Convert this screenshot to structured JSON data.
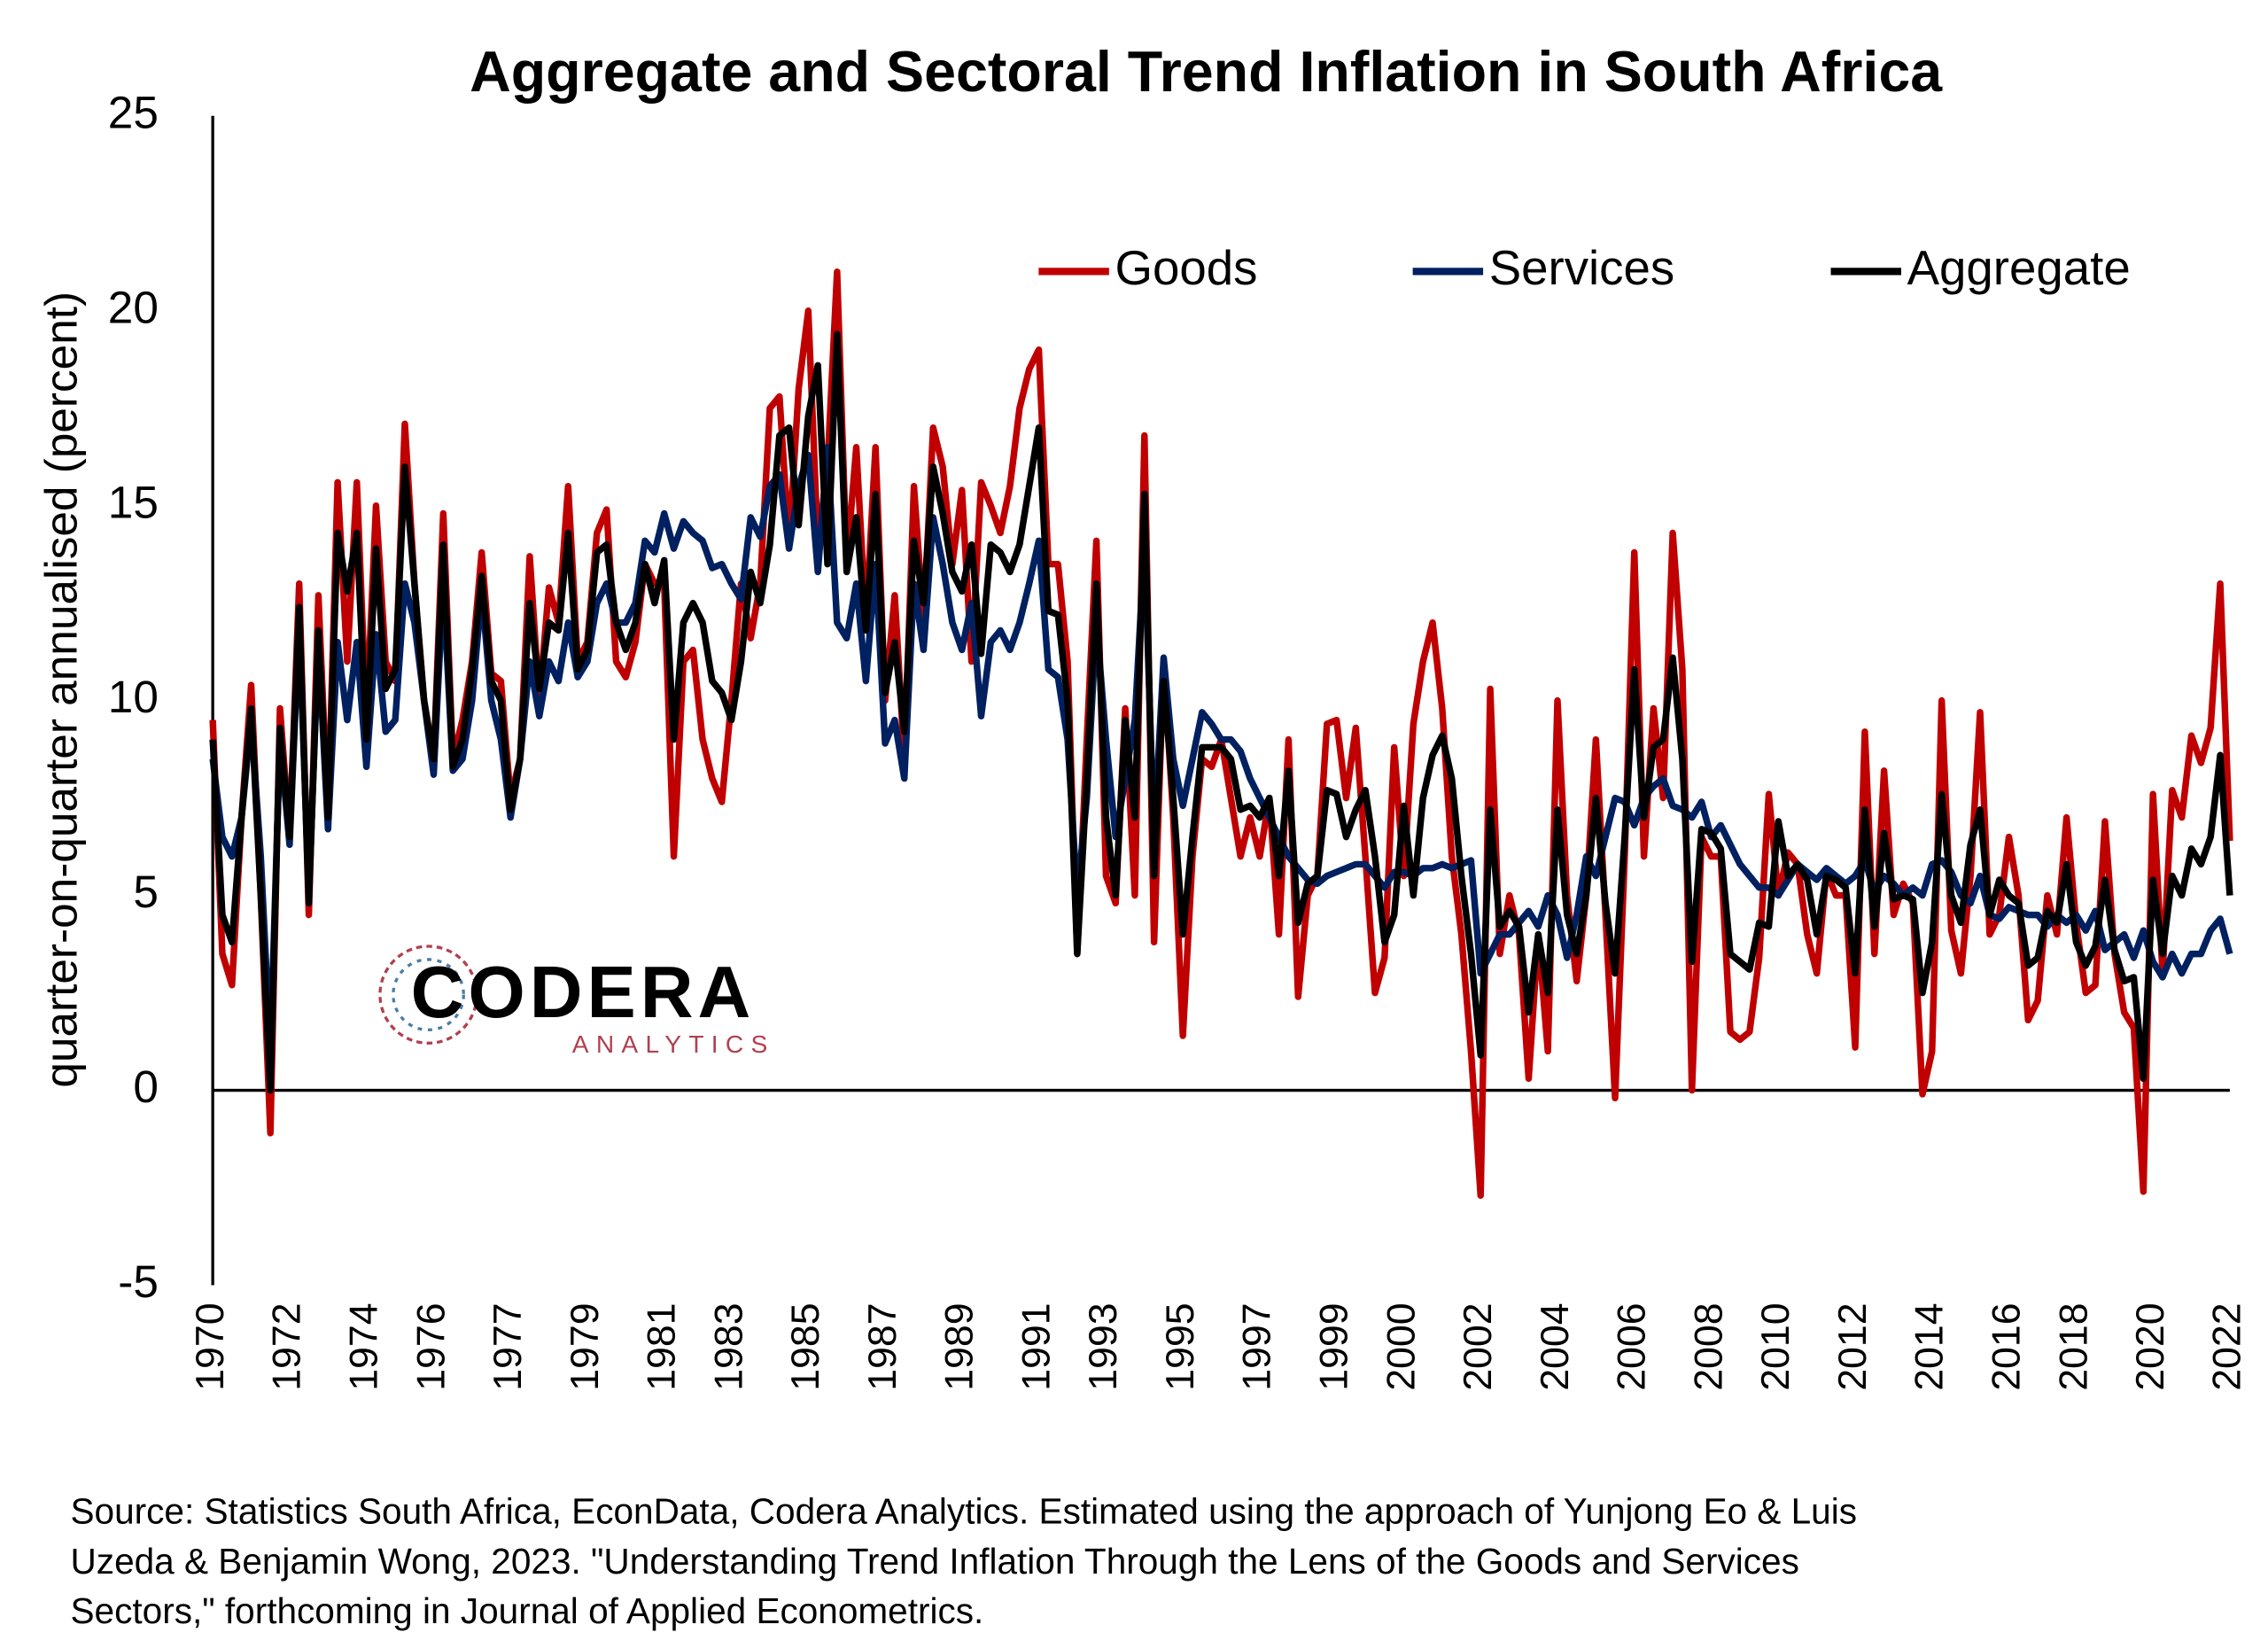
{
  "chart_data": {
    "type": "line",
    "title": "Aggregate and Sectoral Trend Inflation in South Africa",
    "y_label": "quarter-on-quarter annualised (percent)",
    "source": [
      "Source: Statistics South Africa, EconData, Codera Analytics. Estimated using the approach of Yunjong Eo & Luis",
      "Uzeda & Benjamin Wong, 2023. \"Understanding Trend Inflation Through the Lens of the Goods and Services",
      "Sectors,\" forthcoming in Journal of Applied Econometrics."
    ],
    "logo": {
      "name": "CODERA",
      "tagline": "ANALYTICS"
    },
    "ylim": [
      -5,
      25
    ],
    "yticks": [
      -5,
      0,
      5,
      10,
      15,
      20,
      25
    ],
    "grid": false,
    "legend": "top",
    "categories": [
      "1970",
      null,
      null,
      null,
      null,
      null,
      null,
      null,
      "1972",
      null,
      null,
      null,
      null,
      null,
      null,
      null,
      "1974",
      null,
      null,
      null,
      null,
      null,
      null,
      "1976",
      null,
      null,
      null,
      null,
      null,
      null,
      null,
      "1977",
      null,
      null,
      null,
      null,
      null,
      null,
      null,
      "1979",
      null,
      null,
      null,
      null,
      null,
      null,
      null,
      "1981",
      null,
      null,
      null,
      null,
      null,
      null,
      "1983",
      null,
      null,
      null,
      null,
      null,
      null,
      null,
      "1985",
      null,
      null,
      null,
      null,
      null,
      null,
      null,
      "1987",
      null,
      null,
      null,
      null,
      null,
      null,
      null,
      "1989",
      null,
      null,
      null,
      null,
      null,
      null,
      null,
      "1991",
      null,
      null,
      null,
      null,
      null,
      null,
      "1993",
      null,
      null,
      null,
      null,
      null,
      null,
      null,
      "1995",
      null,
      null,
      null,
      null,
      null,
      null,
      null,
      "1997",
      null,
      null,
      null,
      null,
      null,
      null,
      null,
      "1999",
      null,
      null,
      null,
      null,
      null,
      null,
      "2000",
      null,
      null,
      null,
      null,
      null,
      null,
      null,
      "2002",
      null,
      null,
      null,
      null,
      null,
      null,
      null,
      "2004",
      null,
      null,
      null,
      null,
      null,
      null,
      null,
      "2006",
      null,
      null,
      null,
      null,
      null,
      null,
      null,
      "2008",
      null,
      null,
      null,
      null,
      null,
      null,
      "2010",
      null,
      null,
      null,
      null,
      null,
      null,
      null,
      "2012",
      null,
      null,
      null,
      null,
      null,
      null,
      null,
      "2014",
      null,
      null,
      null,
      null,
      null,
      null,
      null,
      "2016",
      null,
      null,
      null,
      null,
      null,
      null,
      "2018",
      null,
      null,
      null,
      null,
      null,
      null,
      null,
      "2020",
      null,
      null,
      null,
      null,
      null,
      null,
      null,
      "2022"
    ],
    "series": [
      {
        "name": "Goods",
        "color": "#c00000",
        "values": [
          9.5,
          3.5,
          2.7,
          7,
          10.4,
          5,
          -1.1,
          9.8,
          6.5,
          13,
          4.5,
          12.7,
          7,
          15.6,
          11,
          15.6,
          9.5,
          15,
          11,
          10.5,
          17.1,
          13,
          10,
          8.5,
          14.8,
          8.5,
          9.5,
          11,
          13.8,
          10.7,
          10.5,
          7.5,
          8.5,
          13.7,
          10,
          12.9,
          12,
          15.5,
          11,
          11.5,
          14.3,
          14.9,
          11,
          10.6,
          11.5,
          13.5,
          13,
          13,
          6,
          11,
          11.3,
          9,
          8,
          7.4,
          10,
          13,
          11.6,
          13,
          17.5,
          17.8,
          14,
          18,
          20,
          14,
          16,
          21,
          13.5,
          16.5,
          12,
          16.5,
          10,
          12.7,
          8.5,
          15.5,
          12,
          17,
          16,
          13.5,
          15.4,
          11,
          15.6,
          15,
          14.3,
          15.5,
          17.5,
          18.5,
          19,
          13.5,
          13.5,
          11,
          3.5,
          9,
          14.1,
          5.5,
          4.8,
          9.8,
          5,
          16.8,
          3.8,
          11,
          7,
          1.4,
          6,
          8.5,
          8.3,
          9,
          7.5,
          6,
          7,
          6,
          7.5,
          4,
          9,
          2.4,
          5,
          5.5,
          9.4,
          9.5,
          7.5,
          9.3,
          6,
          2.5,
          3.4,
          8.8,
          5.5,
          9.4,
          11,
          12,
          9.8,
          6,
          4,
          1,
          -2.7,
          10.3,
          3.5,
          5,
          4,
          0.3,
          4,
          1,
          10,
          5,
          2.8,
          5,
          9,
          4.5,
          -0.2,
          6,
          13.8,
          6,
          9.8,
          7.5,
          14.3,
          10.8,
          0,
          6.5,
          6,
          6,
          1.5,
          1.3,
          1.5,
          3.4,
          7.6,
          5,
          6.1,
          5.8,
          4,
          3,
          5.6,
          5,
          5,
          1.1,
          9.2,
          3.5,
          8.2,
          4.5,
          5.3,
          4.8,
          -0.1,
          1,
          10,
          4.1,
          3,
          5.5,
          9.7,
          4,
          4.5,
          6.5,
          5,
          1.8,
          2.3,
          5,
          4,
          7,
          4.3,
          2.5,
          2.7,
          6.9,
          3.5,
          2,
          1.6,
          -2.6,
          7.6,
          3,
          7.7,
          7,
          9.1,
          8.4,
          9.3,
          13,
          6.4
        ]
      },
      {
        "name": "Services",
        "color": "#002060",
        "values": [
          8.5,
          6.5,
          6,
          7,
          9.5,
          6,
          1,
          9,
          6.3,
          12,
          5,
          11.5,
          6.7,
          11.5,
          9.5,
          11.5,
          8.3,
          11.7,
          9.2,
          9.5,
          13,
          12,
          10,
          8.1,
          13,
          8.2,
          8.5,
          10,
          12.8,
          10,
          9,
          7,
          8.5,
          11,
          9.6,
          11,
          10.5,
          12,
          10.6,
          11,
          12.5,
          13,
          12,
          12,
          12.5,
          14.1,
          13.8,
          14.8,
          13.9,
          14.6,
          14.3,
          14.1,
          13.4,
          13.5,
          13,
          12.6,
          14.7,
          14.2,
          15.5,
          15.8,
          13.9,
          15.5,
          16.3,
          13.3,
          16.5,
          12,
          11.6,
          13,
          10.5,
          13.5,
          8.9,
          9.5,
          8,
          13,
          11.3,
          14.7,
          13.5,
          12,
          11.3,
          12.5,
          9.6,
          11.5,
          11.8,
          11.3,
          12,
          13,
          14.1,
          10.8,
          10.6,
          9,
          5,
          7.5,
          12,
          9,
          6.5,
          8,
          9.5,
          14,
          6.5,
          11.1,
          8.5,
          7.3,
          8.5,
          9.7,
          9.4,
          9,
          9,
          8.7,
          8,
          7.5,
          7,
          6.5,
          6,
          5.7,
          5.4,
          5.3,
          5.5,
          5.6,
          5.7,
          5.8,
          5.8,
          5.5,
          5.2,
          5.6,
          5.6,
          5.5,
          5.7,
          5.7,
          5.8,
          5.7,
          5.8,
          5.9,
          3,
          3.5,
          4,
          4,
          4.3,
          4.6,
          4.2,
          5,
          4.5,
          3.4,
          4.5,
          6,
          5.5,
          6.5,
          7.5,
          7.4,
          6.8,
          7.5,
          7.8,
          8,
          7.3,
          7.2,
          7,
          7.4,
          6.5,
          6.8,
          6.3,
          5.8,
          5.5,
          5.2,
          5.2,
          5,
          5.4,
          5.8,
          5.6,
          5.4,
          5.7,
          5.5,
          5.3,
          5.5,
          5.9,
          5.1,
          5.5,
          5.3,
          5,
          5.2,
          5,
          5.8,
          5.9,
          5.6,
          5,
          4.8,
          5.5,
          4.5,
          4.4,
          4.7,
          4.6,
          4.5,
          4.5,
          4.2,
          4.5,
          4.3,
          4.5,
          4.1,
          4.6,
          3.6,
          3.8,
          4,
          3.4,
          4.1,
          3.3,
          2.9,
          3.5,
          3,
          3.5,
          3.5,
          4.1,
          4.4,
          3.5
        ]
      },
      {
        "name": "Aggregate",
        "color": "#000000",
        "values": [
          9,
          4.5,
          3.8,
          7,
          9.8,
          5,
          0,
          9.3,
          6.5,
          12.4,
          4.8,
          11.8,
          7,
          14.3,
          12.8,
          14.3,
          9,
          13.9,
          10.3,
          10.8,
          16,
          13,
          10,
          8.5,
          14,
          8.3,
          9,
          10.8,
          13.2,
          10.5,
          10,
          7.2,
          8.5,
          12.5,
          10.3,
          12,
          11.8,
          14.3,
          10.8,
          11.3,
          13.8,
          14,
          12,
          11.3,
          12,
          13.5,
          12.5,
          13.6,
          9,
          12,
          12.5,
          12,
          10.5,
          10.2,
          9.5,
          11,
          13.3,
          12.5,
          14,
          16.8,
          17,
          14.5,
          17.3,
          18.6,
          13.5,
          19.4,
          13.3,
          14.7,
          11.8,
          15.3,
          10.2,
          11.5,
          9.2,
          14.1,
          12.5,
          16,
          14.8,
          13.3,
          12.8,
          14,
          11.2,
          14,
          13.8,
          13.3,
          14,
          15.5,
          17,
          12.3,
          12.2,
          10,
          3.5,
          8,
          13,
          7,
          5,
          9.5,
          7,
          15.3,
          5.5,
          10.5,
          7.5,
          4,
          6.5,
          8.8,
          8.8,
          8.8,
          8.5,
          7.2,
          7.3,
          7,
          7.5,
          5.5,
          8.2,
          4.3,
          5.3,
          5.5,
          7.7,
          7.6,
          6.5,
          7.2,
          7.7,
          6,
          3.8,
          4.5,
          7.3,
          5,
          7.5,
          8.6,
          9.1,
          8,
          5.5,
          3.5,
          0.9,
          7.2,
          4.2,
          4.6,
          4.2,
          2,
          4,
          2.5,
          7.2,
          4.5,
          3.5,
          5,
          7.5,
          4.8,
          3,
          6.5,
          10.8,
          7,
          8.8,
          9,
          11.1,
          8.5,
          3.3,
          6.7,
          6.6,
          6.2,
          3.5,
          3.3,
          3.1,
          4.3,
          4.2,
          6.9,
          5.5,
          5.8,
          5.4,
          4,
          5.5,
          5.4,
          5.2,
          3,
          7.2,
          4.2,
          6.6,
          4.9,
          5,
          4.9,
          2.5,
          3.8,
          7.6,
          5,
          4.3,
          6.3,
          7.2,
          4.5,
          5.4,
          5,
          4.8,
          3.2,
          3.4,
          4.6,
          4.3,
          5.8,
          3.8,
          3.2,
          3.7,
          5.4,
          3.6,
          2.8,
          2.9,
          0.3,
          5.4,
          3.5,
          5.5,
          5,
          6.2,
          5.8,
          6.5,
          8.6,
          5
        ]
      }
    ]
  }
}
